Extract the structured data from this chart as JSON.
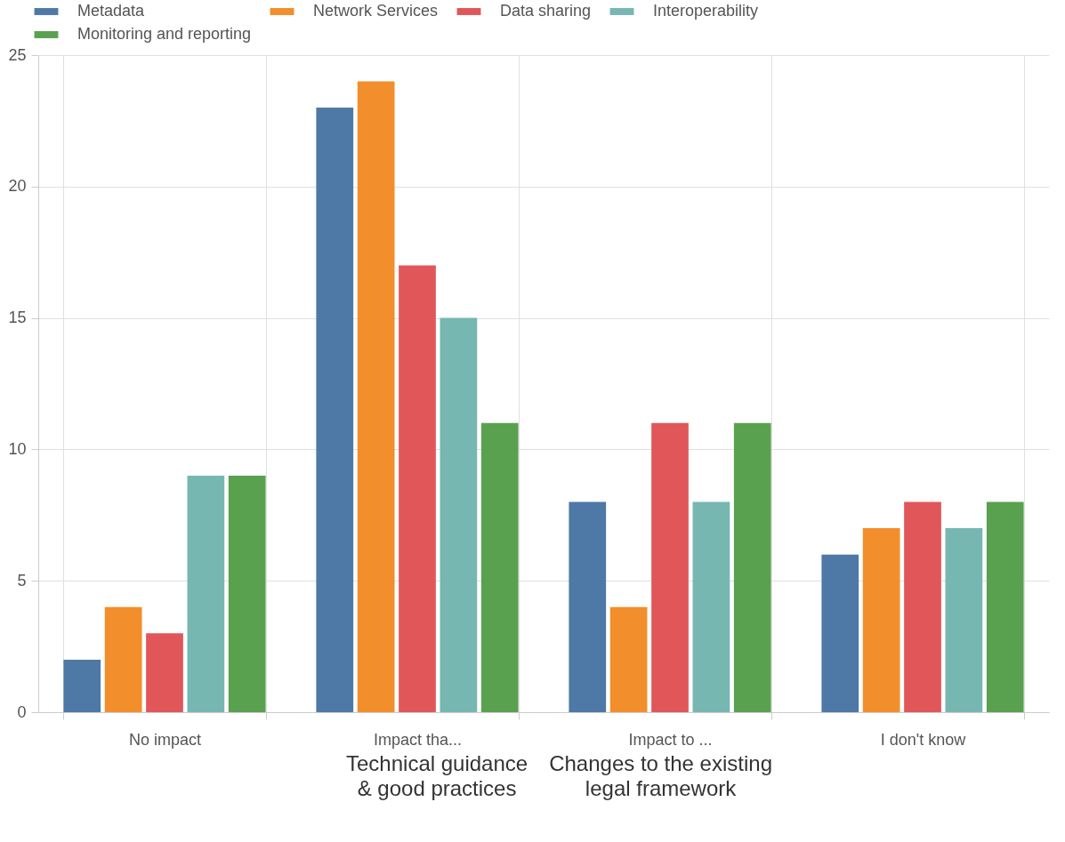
{
  "chart_data": {
    "type": "bar",
    "categories": [
      "No impact",
      "Impact tha...",
      "Impact to ...",
      "I don't know"
    ],
    "series": [
      {
        "name": "Metadata",
        "color": "#4e79a7",
        "values": [
          2,
          23,
          8,
          6
        ]
      },
      {
        "name": "Network Services",
        "color": "#f28e2b",
        "values": [
          4,
          24,
          4,
          7
        ]
      },
      {
        "name": "Data sharing",
        "color": "#e15759",
        "values": [
          3,
          17,
          11,
          8
        ]
      },
      {
        "name": "Interoperability",
        "color": "#76b7b2",
        "values": [
          9,
          15,
          8,
          7
        ]
      },
      {
        "name": "Monitoring and reporting",
        "color": "#59a14f",
        "values": [
          9,
          11,
          11,
          8
        ]
      }
    ],
    "ylim": [
      0,
      25
    ],
    "yticks": [
      0,
      5,
      10,
      15,
      20,
      25
    ],
    "grid": true,
    "legend": "top",
    "annotations": [
      "Technical guidance & good practices",
      "Changes to the existing legal framework"
    ]
  }
}
